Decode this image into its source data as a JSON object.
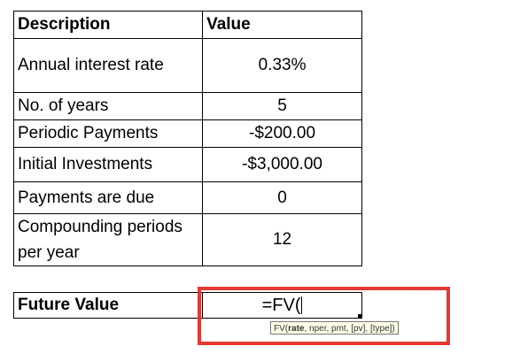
{
  "table": {
    "header": {
      "description": "Description",
      "value": "Value"
    },
    "rows": [
      {
        "description": "Annual interest rate",
        "value": "0.33%"
      },
      {
        "description": "No. of years",
        "value": "5"
      },
      {
        "description": "Periodic Payments",
        "value": "-$200.00"
      },
      {
        "description": "Initial Investments",
        "value": "-$3,000.00"
      },
      {
        "description": "Payments are due",
        "value": "0"
      },
      {
        "description": "Compounding periods per year",
        "value": "12"
      }
    ]
  },
  "future_value": {
    "label": "Future Value",
    "formula": "=FV("
  },
  "tooltip": {
    "fn_open": "FV(",
    "current_arg": "rate",
    "rest": ", nper, pmt, [pv], [type])"
  },
  "colors": {
    "highlight": "#e53935",
    "tooltip_bg": "#ffffe8"
  }
}
